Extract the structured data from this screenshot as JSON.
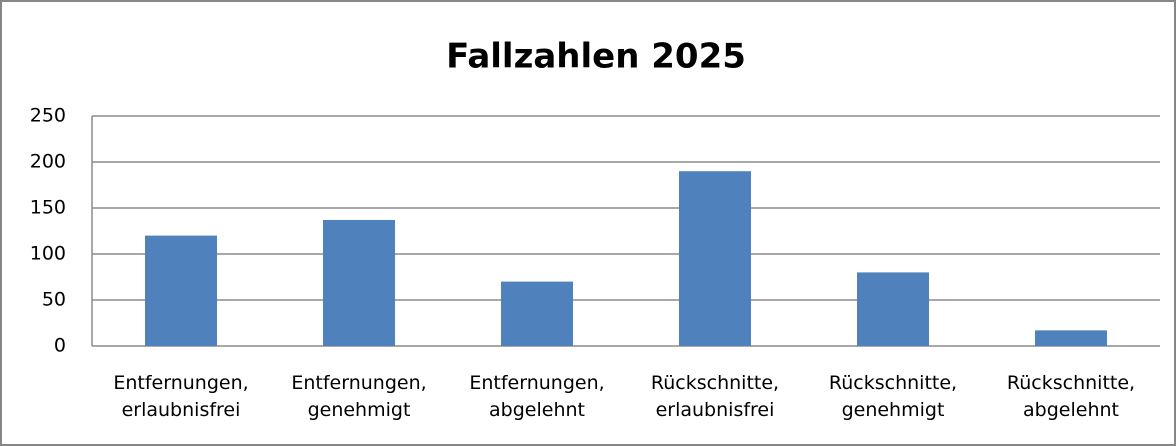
{
  "chart_data": {
    "type": "bar",
    "title": "Fallzahlen 2025",
    "categories": [
      "Entfernungen, erlaubnisfrei",
      "Entfernungen, genehmigt",
      "Entfernungen, abgelehnt",
      "Rückschnitte, erlaubnisfrei",
      "Rückschnitte, genehmigt",
      "Rückschnitte, abgelehnt"
    ],
    "values": [
      120,
      137,
      70,
      190,
      80,
      17
    ],
    "color": "#4f81bd",
    "ylim": [
      0,
      250
    ],
    "yticks": [
      0,
      50,
      100,
      150,
      200,
      250
    ],
    "grid": true
  }
}
